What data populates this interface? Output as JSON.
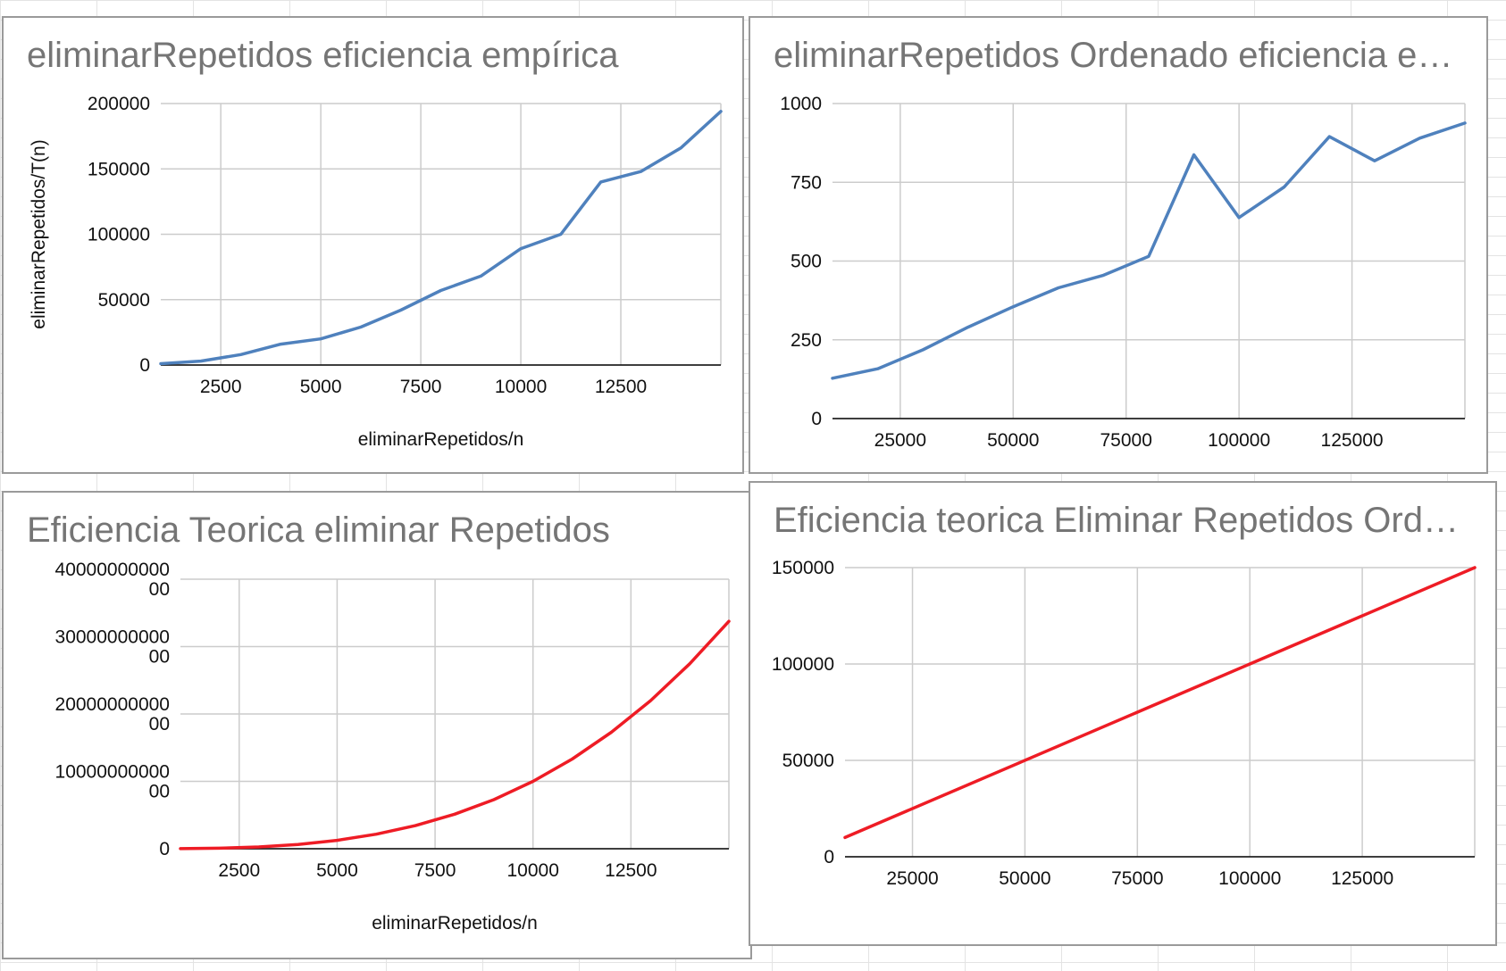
{
  "chart_data": [
    {
      "id": "c1",
      "type": "line",
      "title": "eliminarRepetidos eficiencia empírica",
      "xlabel": "eliminarRepetidos/n",
      "ylabel": "eliminarRepetidos/T(n)",
      "xlim": [
        1000,
        15000
      ],
      "ylim": [
        0,
        200000
      ],
      "xticks": [
        2500,
        5000,
        7500,
        10000,
        12500
      ],
      "yticks": [
        0,
        50000,
        100000,
        150000,
        200000
      ],
      "grid": true,
      "legend": "none",
      "series": [
        {
          "color": "#4f81bd",
          "x": [
            1000,
            2000,
            3000,
            4000,
            5000,
            6000,
            7000,
            8000,
            9000,
            10000,
            11000,
            12000,
            13000,
            14000,
            15000
          ],
          "y": [
            1000,
            3000,
            8000,
            16000,
            20000,
            29000,
            42000,
            57000,
            68000,
            89000,
            100000,
            140000,
            148000,
            166000,
            194000
          ]
        }
      ]
    },
    {
      "id": "c2",
      "type": "line",
      "title": "eliminarRepetidos Ordenado eficiencia e…",
      "xlabel": "",
      "ylabel": "",
      "xlim": [
        10000,
        150000
      ],
      "ylim": [
        0,
        1000
      ],
      "xticks": [
        25000,
        50000,
        75000,
        100000,
        125000
      ],
      "yticks": [
        0,
        250,
        500,
        750,
        1000
      ],
      "grid": true,
      "legend": "none",
      "series": [
        {
          "color": "#4f81bd",
          "x": [
            10000,
            20000,
            30000,
            40000,
            50000,
            60000,
            70000,
            80000,
            90000,
            100000,
            110000,
            120000,
            130000,
            140000,
            150000
          ],
          "y": [
            128,
            158,
            218,
            290,
            355,
            415,
            455,
            515,
            837,
            638,
            735,
            895,
            818,
            890,
            938
          ]
        }
      ]
    },
    {
      "id": "c3",
      "type": "line",
      "title": "Eficiencia Teorica eliminar Repetidos",
      "xlabel": "eliminarRepetidos/n",
      "ylabel": "",
      "xlim": [
        1000,
        15000
      ],
      "ylim": [
        0,
        4000000000000
      ],
      "xticks": [
        2500,
        5000,
        7500,
        10000,
        12500
      ],
      "yticks": [
        0,
        1000000000000,
        2000000000000,
        3000000000000,
        4000000000000
      ],
      "ytick_labels": [
        [
          "0"
        ],
        [
          "10000000000",
          "00"
        ],
        [
          "20000000000",
          "00"
        ],
        [
          "30000000000",
          "00"
        ],
        [
          "40000000000",
          "00"
        ]
      ],
      "grid": true,
      "legend": "none",
      "series": [
        {
          "color": "#ee1c25",
          "x": [
            1000,
            2000,
            3000,
            4000,
            5000,
            6000,
            7000,
            8000,
            9000,
            10000,
            11000,
            12000,
            13000,
            14000,
            15000
          ],
          "y": [
            1000000000,
            8000000000,
            27000000000,
            64000000000,
            125000000000,
            216000000000,
            343000000000,
            512000000000,
            729000000000,
            1000000000000,
            1331000000000,
            1728000000000,
            2197000000000,
            2744000000000,
            3375000000000
          ]
        }
      ]
    },
    {
      "id": "c4",
      "type": "line",
      "title": "Eficiencia teorica Eliminar Repetidos Ord…",
      "xlabel": "",
      "ylabel": "",
      "xlim": [
        10000,
        150000
      ],
      "ylim": [
        0,
        150000
      ],
      "xticks": [
        25000,
        50000,
        75000,
        100000,
        125000
      ],
      "yticks": [
        0,
        50000,
        100000,
        150000
      ],
      "grid": true,
      "legend": "none",
      "series": [
        {
          "color": "#ee1c25",
          "x": [
            10000,
            150000
          ],
          "y": [
            10000,
            150000
          ]
        }
      ]
    }
  ]
}
